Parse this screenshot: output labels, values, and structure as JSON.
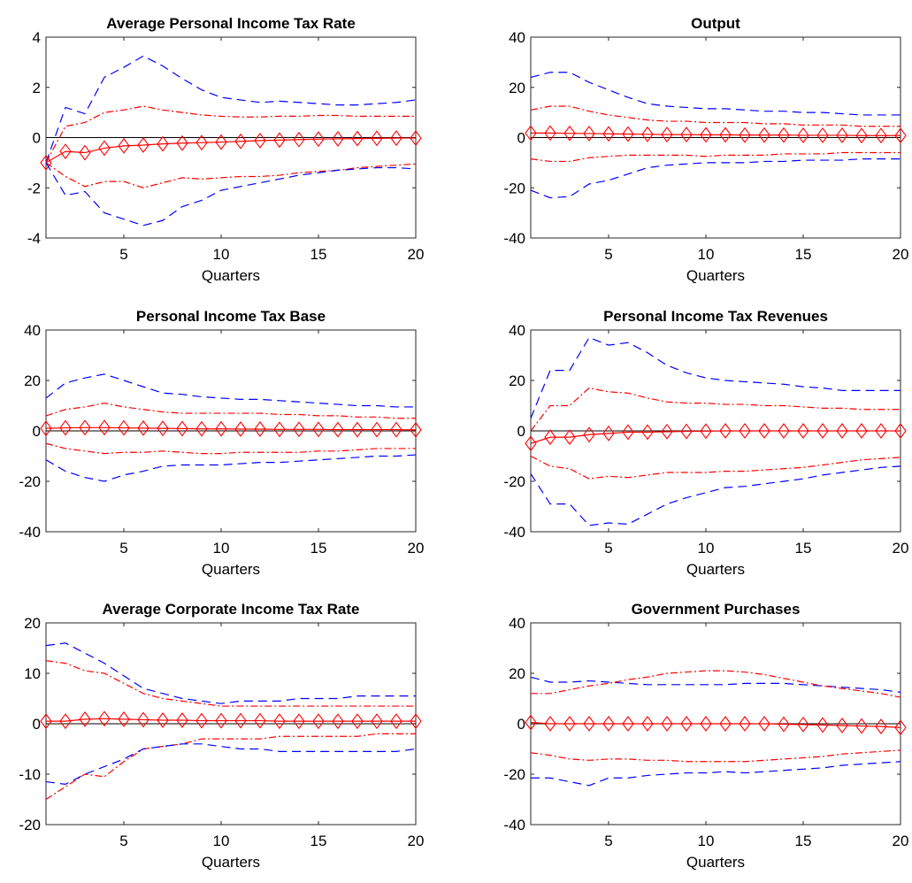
{
  "chart_data": [
    {
      "type": "line",
      "title": "Average Personal Income Tax Rate",
      "xlabel": "Quarters",
      "ylabel": "",
      "xlim": [
        1,
        20
      ],
      "ylim": [
        -4,
        4
      ],
      "xticks": [
        "5",
        "10",
        "15",
        "20"
      ],
      "yticks": [
        "-4",
        "-2",
        "0",
        "2",
        "4"
      ],
      "zero_line": true,
      "x": [
        1,
        2,
        3,
        4,
        5,
        6,
        7,
        8,
        9,
        10,
        11,
        12,
        13,
        14,
        15,
        16,
        17,
        18,
        19,
        20
      ],
      "series": [
        {
          "style": "outer-upper",
          "color": "#0000ff",
          "values": [
            -1.0,
            1.2,
            0.95,
            2.4,
            2.8,
            3.25,
            2.85,
            2.35,
            1.9,
            1.6,
            1.5,
            1.4,
            1.45,
            1.4,
            1.35,
            1.3,
            1.3,
            1.35,
            1.4,
            1.5
          ]
        },
        {
          "style": "inner-upper",
          "color": "#ff0000",
          "values": [
            -1.0,
            0.45,
            0.6,
            1.0,
            1.1,
            1.25,
            1.1,
            1.0,
            0.9,
            0.85,
            0.82,
            0.82,
            0.85,
            0.85,
            0.88,
            0.88,
            0.85,
            0.85,
            0.85,
            0.85
          ]
        },
        {
          "style": "point",
          "color": "#ff0000",
          "values": [
            -1.0,
            -0.55,
            -0.6,
            -0.42,
            -0.33,
            -0.3,
            -0.25,
            -0.22,
            -0.2,
            -0.18,
            -0.15,
            -0.12,
            -0.1,
            -0.08,
            -0.06,
            -0.05,
            -0.04,
            -0.03,
            -0.02,
            -0.02
          ]
        },
        {
          "style": "inner-lower",
          "color": "#ff0000",
          "values": [
            -1.0,
            -1.55,
            -1.95,
            -1.75,
            -1.75,
            -2.0,
            -1.8,
            -1.6,
            -1.65,
            -1.6,
            -1.55,
            -1.55,
            -1.5,
            -1.4,
            -1.35,
            -1.3,
            -1.2,
            -1.15,
            -1.1,
            -1.05
          ]
        },
        {
          "style": "outer-lower",
          "color": "#0000ff",
          "values": [
            -1.0,
            -2.3,
            -2.15,
            -3.0,
            -3.25,
            -3.5,
            -3.3,
            -2.75,
            -2.5,
            -2.1,
            -1.95,
            -1.8,
            -1.65,
            -1.5,
            -1.4,
            -1.3,
            -1.25,
            -1.2,
            -1.2,
            -1.25
          ]
        }
      ]
    },
    {
      "type": "line",
      "title": "Output",
      "xlabel": "Quarters",
      "ylabel": "",
      "xlim": [
        1,
        20
      ],
      "ylim": [
        -40,
        40
      ],
      "xticks": [
        "5",
        "10",
        "15",
        "20"
      ],
      "yticks": [
        "-40",
        "-20",
        "0",
        "20",
        "40"
      ],
      "zero_line": true,
      "x": [
        1,
        2,
        3,
        4,
        5,
        6,
        7,
        8,
        9,
        10,
        11,
        12,
        13,
        14,
        15,
        16,
        17,
        18,
        19,
        20
      ],
      "series": [
        {
          "style": "outer-upper",
          "color": "#0000ff",
          "values": [
            24,
            26,
            26,
            22,
            19,
            16,
            13.5,
            12.5,
            12,
            11.5,
            11.5,
            11,
            10.5,
            10.5,
            10,
            10,
            9.5,
            9,
            9,
            9
          ]
        },
        {
          "style": "inner-upper",
          "color": "#ff0000",
          "values": [
            11,
            12.5,
            12.5,
            10.5,
            9,
            8,
            7,
            6.5,
            6.5,
            6,
            6,
            6,
            5.5,
            5.5,
            5,
            5,
            5,
            4.5,
            4.5,
            4.5
          ]
        },
        {
          "style": "point",
          "color": "#ff0000",
          "values": [
            1.8,
            1.8,
            1.7,
            1.6,
            1.5,
            1.4,
            1.3,
            1.2,
            1.2,
            1.1,
            1.1,
            1.0,
            1.0,
            1.0,
            0.9,
            0.9,
            0.9,
            0.8,
            0.8,
            0.8
          ]
        },
        {
          "style": "inner-lower",
          "color": "#ff0000",
          "values": [
            -8.5,
            -9.5,
            -9.5,
            -8,
            -7.5,
            -7,
            -7,
            -7,
            -7,
            -7.5,
            -7,
            -7,
            -7,
            -6.5,
            -6.5,
            -6.5,
            -6,
            -6,
            -6,
            -6
          ]
        },
        {
          "style": "outer-lower",
          "color": "#0000ff",
          "values": [
            -21,
            -24,
            -23.5,
            -18.5,
            -17,
            -14.5,
            -12,
            -11,
            -10.5,
            -10,
            -10,
            -10,
            -9.5,
            -9.5,
            -9,
            -9,
            -9,
            -8.5,
            -8.5,
            -8.5
          ]
        }
      ]
    },
    {
      "type": "line",
      "title": "Personal Income Tax Base",
      "xlabel": "Quarters",
      "ylabel": "",
      "xlim": [
        1,
        20
      ],
      "ylim": [
        -40,
        40
      ],
      "xticks": [
        "5",
        "10",
        "15",
        "20"
      ],
      "yticks": [
        "-40",
        "-20",
        "0",
        "20",
        "40"
      ],
      "zero_line": true,
      "x": [
        1,
        2,
        3,
        4,
        5,
        6,
        7,
        8,
        9,
        10,
        11,
        12,
        13,
        14,
        15,
        16,
        17,
        18,
        19,
        20
      ],
      "series": [
        {
          "style": "outer-upper",
          "color": "#0000ff",
          "values": [
            13,
            19,
            21,
            22.5,
            20,
            17.5,
            15,
            14.5,
            13.5,
            13,
            12.5,
            12.5,
            12,
            11.5,
            11,
            10.5,
            10,
            10,
            9.5,
            9.5
          ]
        },
        {
          "style": "inner-upper",
          "color": "#ff0000",
          "values": [
            6,
            8.5,
            9.5,
            11,
            9.5,
            8.5,
            7.5,
            7,
            7,
            7,
            7,
            7,
            6.5,
            6.5,
            6,
            6,
            5.5,
            5.5,
            5,
            5
          ]
        },
        {
          "style": "point",
          "color": "#ff0000",
          "values": [
            1.0,
            1.2,
            1.3,
            1.3,
            1.2,
            1.1,
            1.0,
            0.9,
            0.8,
            0.8,
            0.7,
            0.7,
            0.6,
            0.6,
            0.6,
            0.5,
            0.5,
            0.5,
            0.5,
            0.4
          ]
        },
        {
          "style": "inner-lower",
          "color": "#ff0000",
          "values": [
            -5,
            -7,
            -8,
            -9,
            -8.5,
            -8.5,
            -8,
            -8.5,
            -9,
            -9,
            -8.5,
            -8.5,
            -8.5,
            -8.5,
            -8,
            -8,
            -7.5,
            -7,
            -7,
            -7
          ]
        },
        {
          "style": "outer-lower",
          "color": "#0000ff",
          "values": [
            -11.5,
            -16,
            -18.5,
            -20,
            -17.5,
            -16,
            -14,
            -13.5,
            -13.5,
            -13.5,
            -13,
            -12.5,
            -12.5,
            -12,
            -11.5,
            -11,
            -10.5,
            -10,
            -10,
            -9.5
          ]
        }
      ]
    },
    {
      "type": "line",
      "title": "Personal Income Tax Revenues",
      "xlabel": "Quarters",
      "ylabel": "",
      "xlim": [
        1,
        20
      ],
      "ylim": [
        -40,
        40
      ],
      "xticks": [
        "5",
        "10",
        "15",
        "20"
      ],
      "yticks": [
        "-40",
        "-20",
        "0",
        "20",
        "40"
      ],
      "zero_line": true,
      "x": [
        1,
        2,
        3,
        4,
        5,
        6,
        7,
        8,
        9,
        10,
        11,
        12,
        13,
        14,
        15,
        16,
        17,
        18,
        19,
        20
      ],
      "series": [
        {
          "style": "outer-upper",
          "color": "#0000ff",
          "values": [
            5,
            24,
            24,
            37,
            34,
            35,
            31,
            26,
            23,
            21,
            20,
            19.5,
            19,
            18.5,
            17.5,
            17,
            16,
            16,
            16,
            16
          ]
        },
        {
          "style": "inner-upper",
          "color": "#ff0000",
          "values": [
            0,
            10,
            10,
            17,
            15.5,
            15,
            13,
            11.5,
            11,
            11,
            10.5,
            10.5,
            10,
            10,
            9.5,
            9,
            9,
            8.5,
            8.5,
            8.5
          ]
        },
        {
          "style": "point",
          "color": "#ff0000",
          "values": [
            -5,
            -2.5,
            -2.5,
            -1.5,
            -1,
            -0.5,
            -0.5,
            -0.3,
            -0.2,
            -0.1,
            0,
            0,
            0,
            0,
            0,
            0,
            0,
            0,
            0,
            0
          ]
        },
        {
          "style": "inner-lower",
          "color": "#ff0000",
          "values": [
            -10,
            -14,
            -15,
            -19,
            -18,
            -18.5,
            -17.5,
            -16.5,
            -16.5,
            -16.5,
            -16,
            -16,
            -15.5,
            -15,
            -14.5,
            -13.5,
            -12.5,
            -11.5,
            -11,
            -10.5
          ]
        },
        {
          "style": "outer-lower",
          "color": "#0000ff",
          "values": [
            -17,
            -29,
            -29,
            -37.5,
            -36.5,
            -37,
            -33,
            -29,
            -26.5,
            -24.5,
            -22.5,
            -22,
            -21,
            -20,
            -19,
            -17.5,
            -16.5,
            -15.5,
            -14.5,
            -14
          ]
        }
      ]
    },
    {
      "type": "line",
      "title": "Average Corporate Income Tax Rate",
      "xlabel": "Quarters",
      "ylabel": "",
      "xlim": [
        1,
        20
      ],
      "ylim": [
        -20,
        20
      ],
      "xticks": [
        "5",
        "10",
        "15",
        "20"
      ],
      "yticks": [
        "-20",
        "-10",
        "0",
        "10",
        "20"
      ],
      "zero_line": true,
      "x": [
        1,
        2,
        3,
        4,
        5,
        6,
        7,
        8,
        9,
        10,
        11,
        12,
        13,
        14,
        15,
        16,
        17,
        18,
        19,
        20
      ],
      "series": [
        {
          "style": "outer-upper",
          "color": "#0000ff",
          "values": [
            15.5,
            16,
            14,
            12,
            9.5,
            7,
            6,
            5,
            4.5,
            4,
            4.5,
            4.5,
            4.5,
            5,
            5,
            5,
            5.5,
            5.5,
            5.5,
            5.5
          ]
        },
        {
          "style": "inner-upper",
          "color": "#ff0000",
          "values": [
            12.5,
            12,
            10.5,
            10,
            8,
            6,
            5,
            4.5,
            4,
            3.5,
            3.5,
            3.5,
            3.5,
            3.5,
            3.5,
            3.5,
            3.5,
            3.5,
            3.5,
            3.5
          ]
        },
        {
          "style": "point",
          "color": "#ff0000",
          "values": [
            0.5,
            0.5,
            0.9,
            1.0,
            0.9,
            0.8,
            0.7,
            0.7,
            0.6,
            0.6,
            0.6,
            0.6,
            0.5,
            0.5,
            0.5,
            0.5,
            0.5,
            0.5,
            0.5,
            0.5
          ]
        },
        {
          "style": "inner-lower",
          "color": "#ff0000",
          "values": [
            -15,
            -12.5,
            -10,
            -10.5,
            -7.5,
            -5,
            -4.5,
            -4,
            -3,
            -3,
            -3,
            -3,
            -2.5,
            -2.5,
            -2.5,
            -2.5,
            -2.5,
            -2,
            -2,
            -2
          ]
        },
        {
          "style": "outer-lower",
          "color": "#0000ff",
          "values": [
            -11.5,
            -12,
            -10,
            -8.5,
            -7,
            -5,
            -4.5,
            -4,
            -4,
            -4.5,
            -5,
            -5,
            -5.5,
            -5.5,
            -5.5,
            -5.5,
            -5.5,
            -5.5,
            -5.5,
            -5
          ]
        }
      ]
    },
    {
      "type": "line",
      "title": "Government Purchases",
      "xlabel": "Quarters",
      "ylabel": "",
      "xlim": [
        1,
        20
      ],
      "ylim": [
        -40,
        40
      ],
      "xticks": [
        "5",
        "10",
        "15",
        "20"
      ],
      "yticks": [
        "-40",
        "-20",
        "0",
        "20",
        "40"
      ],
      "zero_line": true,
      "x": [
        1,
        2,
        3,
        4,
        5,
        6,
        7,
        8,
        9,
        10,
        11,
        12,
        13,
        14,
        15,
        16,
        17,
        18,
        19,
        20
      ],
      "series": [
        {
          "style": "outer-upper",
          "color": "#0000ff",
          "values": [
            18.5,
            16.5,
            16.5,
            17,
            16.5,
            16,
            15.5,
            15.5,
            15.5,
            15.5,
            15.5,
            16,
            16,
            16,
            15.5,
            15,
            14.5,
            14,
            13.5,
            12.5
          ]
        },
        {
          "style": "inner-upper",
          "color": "#ff0000",
          "values": [
            12,
            12,
            13.5,
            15,
            16,
            17.5,
            18.5,
            20,
            20.5,
            21,
            21,
            20.5,
            19.5,
            18,
            16.5,
            15,
            14,
            13,
            12,
            10.5
          ]
        },
        {
          "style": "point",
          "color": "#ff0000",
          "values": [
            0.5,
            0,
            0,
            0,
            0,
            0,
            0,
            0,
            0,
            0,
            0,
            0,
            0,
            -0.2,
            -0.3,
            -0.5,
            -0.7,
            -0.9,
            -1.1,
            -1.5
          ]
        },
        {
          "style": "inner-lower",
          "color": "#ff0000",
          "values": [
            -11.5,
            -12.5,
            -14,
            -14.5,
            -14,
            -14,
            -14.5,
            -14.5,
            -15,
            -15,
            -15,
            -15,
            -14.5,
            -14,
            -13.5,
            -13,
            -12,
            -11.5,
            -11,
            -10.5
          ]
        },
        {
          "style": "outer-lower",
          "color": "#0000ff",
          "values": [
            -21.5,
            -21.5,
            -23,
            -24.5,
            -21.5,
            -21.5,
            -20.5,
            -20,
            -19.5,
            -19.5,
            -19,
            -19.5,
            -19,
            -18.5,
            -18,
            -17.5,
            -16.5,
            -16,
            -15.5,
            -15
          ]
        }
      ]
    }
  ]
}
